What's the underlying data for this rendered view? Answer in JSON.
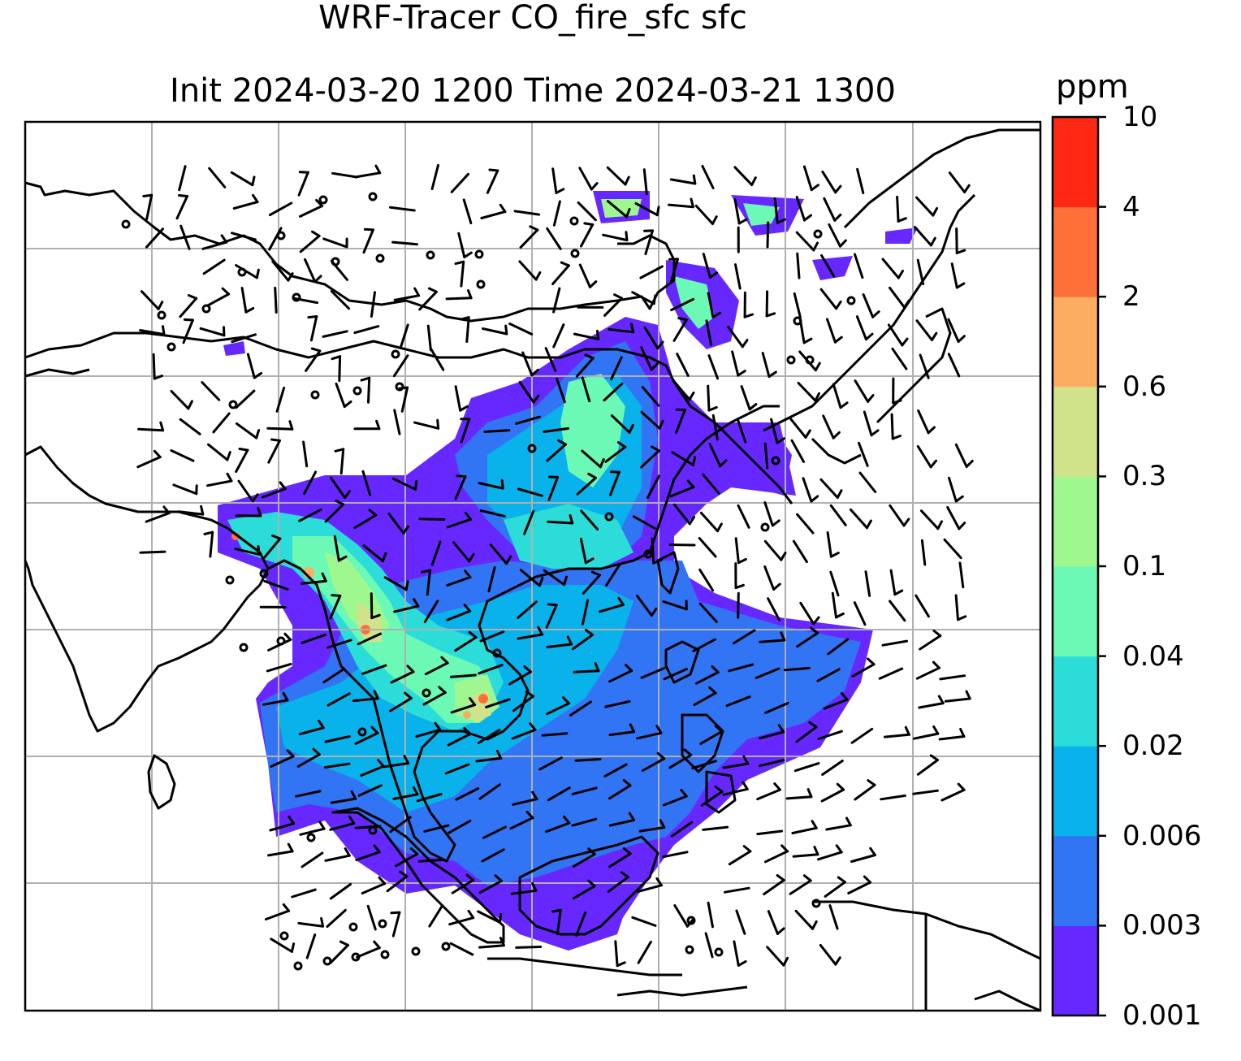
{
  "figure": {
    "title_line1": "WRF-Tracer CO_fire_sfc sfc",
    "title_line2": "Init 2024-03-20 1200 Time 2024-03-21 1300"
  },
  "colorbar": {
    "unit": "ppm",
    "levels": [
      "0.001",
      "0.003",
      "0.006",
      "0.02",
      "0.04",
      "0.1",
      "0.3",
      "0.6",
      "2",
      "4",
      "10"
    ],
    "colors": [
      "#6628ff",
      "#3275f4",
      "#09b2ea",
      "#2cdcd8",
      "#6cf9b6",
      "#9ff88f",
      "#d1e38a",
      "#fdad62",
      "#ff7039",
      "#ff2815"
    ]
  }
}
